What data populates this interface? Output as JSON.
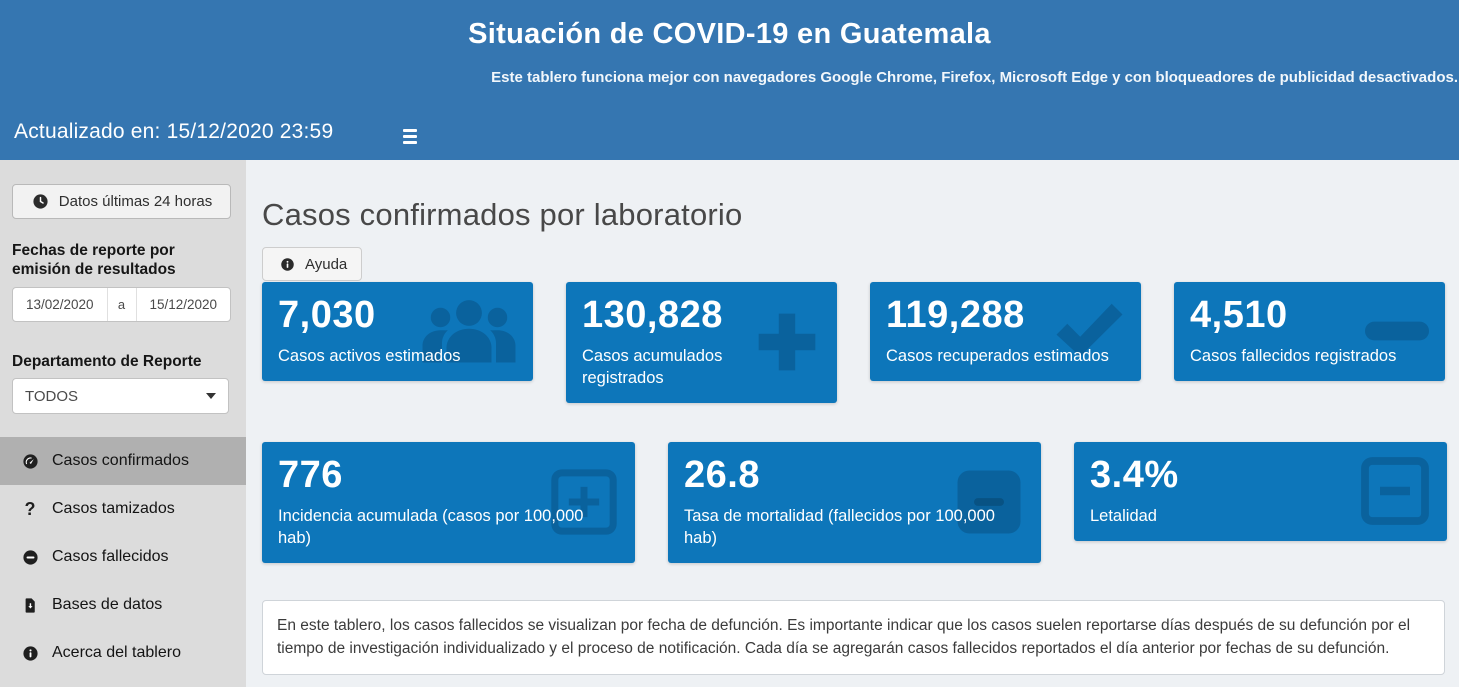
{
  "header": {
    "title": "Situación de COVID-19 en Guatemala",
    "subtitle": "Este tablero funciona mejor con navegadores Google Chrome, Firefox, Microsoft Edge y con bloqueadores de publicidad desactivados.",
    "updated": "Actualizado en: 15/12/2020 23:59"
  },
  "sidebar": {
    "last24_button": "Datos últimas 24 horas",
    "dates_label": "Fechas de reporte por emisión de resultados",
    "date_from": "13/02/2020",
    "date_separator": "a",
    "date_to": "15/12/2020",
    "department_label": "Departamento de Reporte",
    "department_value": "TODOS",
    "menu": [
      {
        "label": "Casos confirmados",
        "icon": "tachometer-icon",
        "active": true
      },
      {
        "label": "Casos tamizados",
        "icon": "question-icon",
        "active": false
      },
      {
        "label": "Casos fallecidos",
        "icon": "minus-circle-icon",
        "active": false
      },
      {
        "label": "Bases de datos",
        "icon": "file-download-icon",
        "active": false
      },
      {
        "label": "Acerca del tablero",
        "icon": "info-icon",
        "active": false
      }
    ]
  },
  "main": {
    "heading": "Casos confirmados por laboratorio",
    "help_button": "Ayuda",
    "cards": [
      {
        "row": 1,
        "value": "7,030",
        "label": "Casos activos estimados",
        "icon": "users-icon"
      },
      {
        "row": 1,
        "value": "130,828",
        "label": "Casos acumulados registrados",
        "icon": "plus-icon"
      },
      {
        "row": 1,
        "value": "119,288",
        "label": "Casos recuperados estimados",
        "icon": "check-icon"
      },
      {
        "row": 1,
        "value": "4,510",
        "label": "Casos fallecidos registrados",
        "icon": "minus-icon"
      },
      {
        "row": 2,
        "value": "776",
        "label": "Incidencia acumulada (casos por 100,000 hab)",
        "icon": "plus-square-icon"
      },
      {
        "row": 2,
        "value": "26.8",
        "label": "Tasa de mortalidad (fallecidos por 100,000 hab)",
        "icon": "square-icon"
      },
      {
        "row": 2,
        "value": "3.4%",
        "label": "Letalidad",
        "icon": "minus-square-icon"
      }
    ],
    "note": "En este tablero, los casos fallecidos se visualizan por fecha de defunción. Es importante indicar que los casos suelen reportarse días después de su defunción por el tiempo de investigación individualizado y el proceso de notificación. Cada día se agregarán casos fallecidos reportados el día anterior por fechas de su defunción."
  },
  "colors": {
    "header_blue": "#3576b1",
    "card_blue": "#0d76ba",
    "icon_blue": "#0a629d",
    "sidebar_gray": "#dcdcdc",
    "active_gray": "#b0b0b0",
    "main_bg": "#eef1f4"
  }
}
